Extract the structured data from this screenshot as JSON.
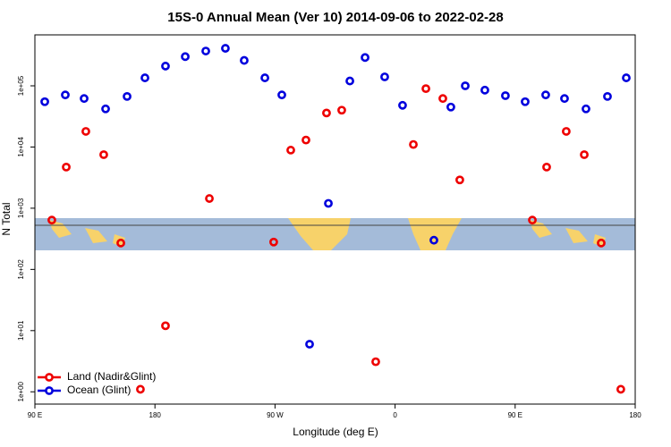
{
  "chart_data": {
    "type": "scatter",
    "title": "15S-0 Annual Mean (Ver 10)   2014-09-06 to 2022-02-28",
    "x_label": "Longitude (deg E)",
    "y_label": "N Total",
    "log_y": true,
    "legend": "bottom-left",
    "xlim": [
      90,
      540
    ],
    "xticks": [
      {
        "value": 90,
        "label": "90 E"
      },
      180,
      {
        "value": 270,
        "label": "90 W"
      },
      {
        "value": 360,
        "label": "0"
      },
      {
        "value": 450,
        "label": "90 E"
      },
      {
        "value": 540,
        "label": "180"
      }
    ],
    "ylim": [
      0.63,
      680000
    ],
    "yticks": [
      {
        "value": 1,
        "label": "1e+00"
      },
      {
        "value": 10,
        "label": "1e+01"
      },
      {
        "value": 100,
        "label": "1e+02"
      },
      {
        "value": 1000,
        "label": "1e+03"
      },
      {
        "value": 10000,
        "label": "1e+04"
      },
      {
        "value": 100000,
        "label": "1e+05"
      }
    ],
    "series": [
      {
        "name": "Land (Nadir&Glint)",
        "color": "#ee0000",
        "x": [
          102.7,
          113.5,
          128.2,
          141.6,
          154.4,
          169.1,
          187.9,
          220.8,
          269.0,
          281.8,
          293.2,
          308.6,
          320.0,
          345.5,
          373.7,
          383.1,
          395.8,
          408.5,
          462.9,
          473.6,
          488.3,
          501.8,
          514.5,
          529.2
        ],
        "values": [
          640,
          4700,
          18000,
          7500,
          270,
          1.1,
          12,
          1440,
          280,
          8900,
          13000,
          36000,
          40000,
          3.1,
          11000,
          90000,
          62000,
          2900,
          640,
          4700,
          18000,
          7500,
          270,
          1.1
        ]
      },
      {
        "name": "Ocean (Glint)",
        "color": "#0000dd",
        "x": [
          97.4,
          112.8,
          126.9,
          143.0,
          159.1,
          172.5,
          187.9,
          202.7,
          218.1,
          232.8,
          246.9,
          262.4,
          275.1,
          295.9,
          310.0,
          326.1,
          337.5,
          352.2,
          365.6,
          389.1,
          401.8,
          412.6,
          427.3,
          442.7,
          457.5,
          472.9,
          487.0,
          503.1,
          519.2,
          533.3
        ],
        "values": [
          55000,
          71000,
          62000,
          42000,
          67000,
          135000,
          210000,
          300000,
          370000,
          410000,
          260000,
          135000,
          71000,
          6,
          1200,
          120000,
          290000,
          140000,
          48000,
          300,
          45000,
          100000,
          85000,
          69000,
          55000,
          71000,
          62000,
          42000,
          67000,
          135000
        ]
      }
    ]
  }
}
